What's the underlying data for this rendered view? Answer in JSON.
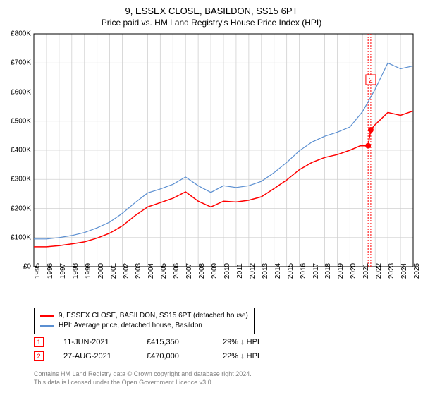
{
  "chart": {
    "title": "9, ESSEX CLOSE, BASILDON, SS15 6PT",
    "subtitle": "Price paid vs. HM Land Registry's House Price Index (HPI)",
    "background_color": "#ffffff",
    "grid_color": "#d0d0d0",
    "axis_color": "#000000",
    "title_fontsize": 13,
    "subtitle_fontsize": 12,
    "tick_fontsize": 10,
    "y_axis": {
      "min": 0,
      "max": 800000,
      "ticks": [
        0,
        100000,
        200000,
        300000,
        400000,
        500000,
        600000,
        700000,
        800000
      ],
      "labels": [
        "£0",
        "£100K",
        "£200K",
        "£300K",
        "£400K",
        "£500K",
        "£600K",
        "£700K",
        "£800K"
      ]
    },
    "x_axis": {
      "min": 1995,
      "max": 2025,
      "ticks": [
        1995,
        1996,
        1997,
        1998,
        1999,
        2000,
        2001,
        2002,
        2003,
        2004,
        2005,
        2006,
        2007,
        2008,
        2009,
        2010,
        2011,
        2012,
        2013,
        2014,
        2015,
        2016,
        2017,
        2018,
        2019,
        2020,
        2021,
        2022,
        2023,
        2024,
        2025
      ],
      "labels": [
        "1995",
        "1996",
        "1997",
        "1998",
        "1999",
        "2000",
        "2001",
        "2002",
        "2003",
        "2004",
        "2005",
        "2006",
        "2007",
        "2008",
        "2009",
        "2010",
        "2011",
        "2012",
        "2013",
        "2014",
        "2015",
        "2016",
        "2017",
        "2018",
        "2019",
        "2020",
        "2021",
        "2022",
        "2023",
        "2024",
        "2025"
      ]
    },
    "series": [
      {
        "name": "price_paid",
        "label": "9, ESSEX CLOSE, BASILDON, SS15 6PT (detached house)",
        "color": "#ff0000",
        "line_width": 1.5,
        "data": [
          [
            1995,
            68000
          ],
          [
            1996,
            68000
          ],
          [
            1997,
            72000
          ],
          [
            1998,
            78000
          ],
          [
            1999,
            85000
          ],
          [
            2000,
            98000
          ],
          [
            2001,
            115000
          ],
          [
            2002,
            140000
          ],
          [
            2003,
            175000
          ],
          [
            2004,
            205000
          ],
          [
            2005,
            220000
          ],
          [
            2006,
            235000
          ],
          [
            2007,
            257000
          ],
          [
            2008,
            225000
          ],
          [
            2009,
            205000
          ],
          [
            2010,
            225000
          ],
          [
            2011,
            222000
          ],
          [
            2012,
            228000
          ],
          [
            2013,
            240000
          ],
          [
            2014,
            268000
          ],
          [
            2015,
            298000
          ],
          [
            2016,
            333000
          ],
          [
            2017,
            358000
          ],
          [
            2018,
            375000
          ],
          [
            2019,
            385000
          ],
          [
            2020,
            400000
          ],
          [
            2020.8,
            415000
          ],
          [
            2021.44,
            415350
          ],
          [
            2021.65,
            470000
          ],
          [
            2022,
            488000
          ],
          [
            2023,
            530000
          ],
          [
            2024,
            520000
          ],
          [
            2025,
            535000
          ]
        ]
      },
      {
        "name": "hpi",
        "label": "HPI: Average price, detached house, Basildon",
        "color": "#5b8fd1",
        "line_width": 1.2,
        "data": [
          [
            1995,
            95000
          ],
          [
            1996,
            95000
          ],
          [
            1997,
            100000
          ],
          [
            1998,
            107000
          ],
          [
            1999,
            117000
          ],
          [
            2000,
            133000
          ],
          [
            2001,
            153000
          ],
          [
            2002,
            183000
          ],
          [
            2003,
            220000
          ],
          [
            2004,
            253000
          ],
          [
            2005,
            267000
          ],
          [
            2006,
            283000
          ],
          [
            2007,
            308000
          ],
          [
            2008,
            278000
          ],
          [
            2009,
            255000
          ],
          [
            2010,
            278000
          ],
          [
            2011,
            272000
          ],
          [
            2012,
            278000
          ],
          [
            2013,
            293000
          ],
          [
            2014,
            323000
          ],
          [
            2015,
            358000
          ],
          [
            2016,
            398000
          ],
          [
            2017,
            428000
          ],
          [
            2018,
            448000
          ],
          [
            2019,
            462000
          ],
          [
            2020,
            480000
          ],
          [
            2021,
            533000
          ],
          [
            2022,
            610000
          ],
          [
            2023,
            700000
          ],
          [
            2024,
            680000
          ],
          [
            2025,
            690000
          ]
        ]
      }
    ],
    "event_lines": [
      {
        "x": 2021.44,
        "color": "#ff0000",
        "style": "dotted"
      },
      {
        "x": 2021.65,
        "color": "#ff0000",
        "style": "dotted"
      }
    ],
    "event_markers": [
      {
        "n": "2",
        "x": 2021.65,
        "y_top": 58
      }
    ],
    "sale_points": [
      {
        "x": 2021.44,
        "y": 415350,
        "color": "#ff0000"
      },
      {
        "x": 2021.65,
        "y": 470000,
        "color": "#ff0000"
      }
    ]
  },
  "legend": {
    "border_color": "#000000",
    "items": [
      {
        "color": "#ff0000",
        "label": "9, ESSEX CLOSE, BASILDON, SS15 6PT (detached house)"
      },
      {
        "color": "#5b8fd1",
        "label": "HPI: Average price, detached house, Basildon"
      }
    ]
  },
  "transactions": [
    {
      "n": "1",
      "date": "11-JUN-2021",
      "price": "£415,350",
      "delta": "29% ↓ HPI"
    },
    {
      "n": "2",
      "date": "27-AUG-2021",
      "price": "£470,000",
      "delta": "22% ↓ HPI"
    }
  ],
  "attribution": {
    "line1": "Contains HM Land Registry data © Crown copyright and database right 2024.",
    "line2": "This data is licensed under the Open Government Licence v3.0."
  }
}
